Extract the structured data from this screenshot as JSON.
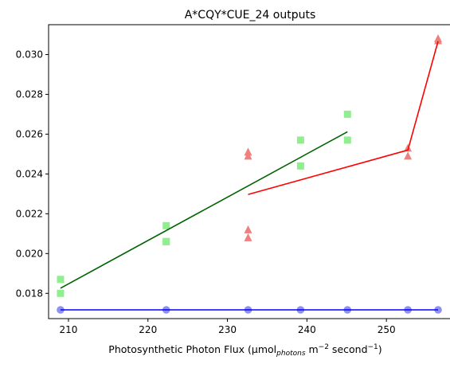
{
  "chart_data": {
    "type": "scatter",
    "title": "A*CQY*CUE_24 outputs",
    "xlabel": {
      "prefix": "Photosynthetic Photon Flux (μmol",
      "sub": "photons",
      "mid1": " m",
      "sup1": "−2",
      "mid2": " second",
      "sup2": "−1",
      "suffix": ")"
    },
    "ylabel": "",
    "xlim": [
      207.5,
      258.2
    ],
    "ylim": [
      0.01673,
      0.0315
    ],
    "xticks": [
      210,
      220,
      230,
      240,
      250
    ],
    "yticks": [
      0.018,
      0.02,
      0.022,
      0.024,
      0.026,
      0.028,
      0.03
    ],
    "ytick_labels": [
      "0.018",
      "0.020",
      "0.022",
      "0.024",
      "0.026",
      "0.028",
      "0.030"
    ],
    "grid": false,
    "series": [
      {
        "marker": "square",
        "color": "#90ee90",
        "points": [
          [
            209,
            0.0187
          ],
          [
            209,
            0.018
          ],
          [
            222.3,
            0.0214
          ],
          [
            222.3,
            0.0206
          ],
          [
            222.3,
            0.0206
          ],
          [
            239.2,
            0.0257
          ],
          [
            239.2,
            0.0244
          ],
          [
            245.1,
            0.027
          ],
          [
            245.1,
            0.0257
          ]
        ],
        "fit_color": "#006400",
        "fit": [
          [
            209,
            0.01826
          ],
          [
            245.1,
            0.02612
          ]
        ]
      },
      {
        "marker": "triangle",
        "color": "#f08080",
        "points": [
          [
            232.6,
            0.0249
          ],
          [
            232.6,
            0.0251
          ],
          [
            232.6,
            0.0212
          ],
          [
            232.6,
            0.0208
          ],
          [
            252.7,
            0.0253
          ],
          [
            252.7,
            0.0249
          ],
          [
            256.5,
            0.0308
          ],
          [
            256.5,
            0.0307
          ]
        ],
        "fit_color": "#ff0000",
        "fit": [
          [
            232.6,
            0.02297
          ],
          [
            252.7,
            0.0252
          ],
          [
            256.5,
            0.03067
          ]
        ]
      },
      {
        "marker": "circle",
        "color": "#9090f0",
        "points": [
          [
            209,
            0.01717
          ],
          [
            222.3,
            0.01717
          ],
          [
            232.6,
            0.01717
          ],
          [
            239.2,
            0.01717
          ],
          [
            245.1,
            0.01717
          ],
          [
            252.7,
            0.01717
          ],
          [
            256.5,
            0.01717
          ]
        ],
        "fit_color": "#0000ff",
        "fit": [
          [
            209,
            0.01717
          ],
          [
            256.5,
            0.01717
          ]
        ]
      }
    ]
  }
}
